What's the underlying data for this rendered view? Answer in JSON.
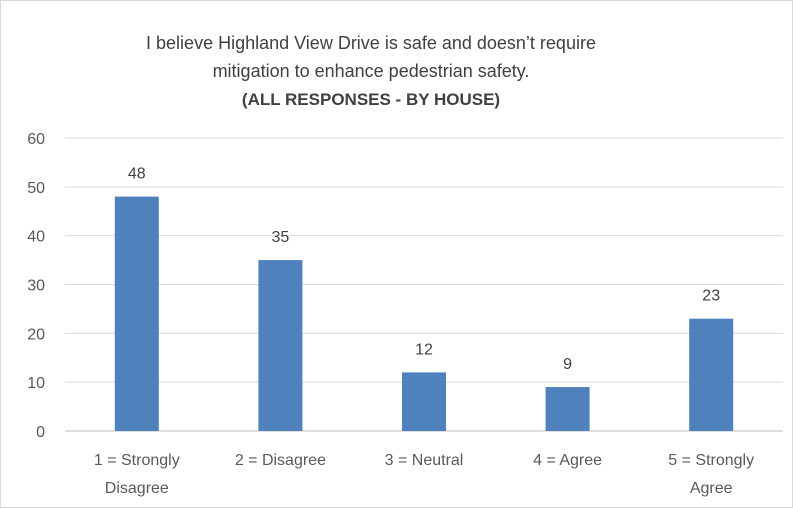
{
  "chart_data": {
    "type": "bar",
    "title": "I believe Highland View Drive is safe and doesn’t require mitigation to enhance pedestrian safety.",
    "title_lines": [
      "I believe Highland View Drive is safe and doesn’t require",
      "mitigation to enhance pedestrian safety."
    ],
    "subtitle": "(ALL RESPONSES - BY HOUSE)",
    "categories": [
      [
        "1 = Strongly",
        "Disagree"
      ],
      [
        "2 = Disagree"
      ],
      [
        "3 = Neutral"
      ],
      [
        "4 = Agree"
      ],
      [
        "5 = Strongly",
        "Agree"
      ]
    ],
    "values": [
      48,
      35,
      12,
      9,
      23
    ],
    "xlabel": "",
    "ylabel": "",
    "ylim": [
      0,
      60
    ],
    "yticks": [
      0,
      10,
      20,
      30,
      40,
      50,
      60
    ],
    "grid": true,
    "legend": "none",
    "data_labels": true
  },
  "colors": {
    "bar": "#4f81bd",
    "grid": "#d9d9d9",
    "axis": "#bfbfbf",
    "text": "#595959",
    "border": "#d9d9d9"
  }
}
